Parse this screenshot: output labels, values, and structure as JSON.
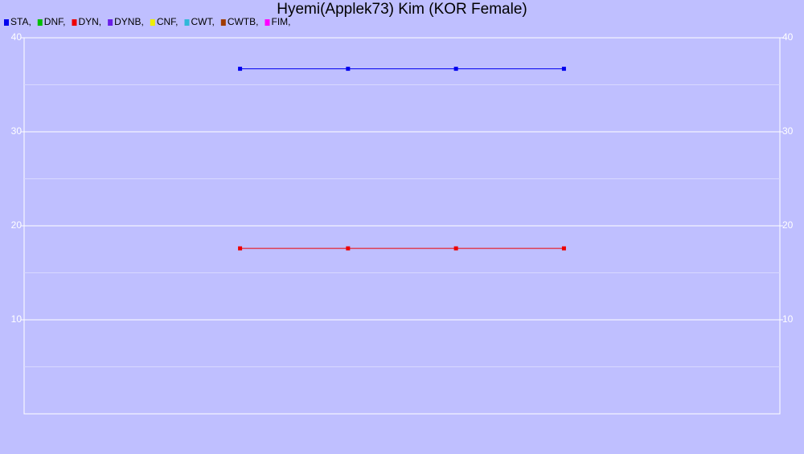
{
  "chart_data": {
    "type": "line",
    "title": "Hyemi(Applek73) Kim (KOR Female)",
    "categories": [
      null,
      null,
      null,
      null,
      null,
      null,
      null,
      null
    ],
    "series": [
      {
        "name": "STA,",
        "color": "#0000ee",
        "values": [
          null,
          null,
          36.7,
          36.7,
          36.7,
          36.7,
          null,
          null
        ]
      },
      {
        "name": "DNF,",
        "color": "#00c000",
        "values": [
          null,
          null,
          null,
          null,
          null,
          null,
          null,
          null
        ]
      },
      {
        "name": "DYN,",
        "color": "#ee0000",
        "values": [
          null,
          null,
          17.6,
          17.6,
          17.6,
          17.6,
          null,
          null
        ]
      },
      {
        "name": "DYNB,",
        "color": "#6a1ee8",
        "values": [
          null,
          null,
          null,
          null,
          null,
          null,
          null,
          null
        ]
      },
      {
        "name": "CNF,",
        "color": "#eeee00",
        "values": [
          null,
          null,
          null,
          null,
          null,
          null,
          null,
          null
        ]
      },
      {
        "name": "CWT,",
        "color": "#30b8d8",
        "values": [
          null,
          null,
          null,
          null,
          null,
          null,
          null,
          null
        ]
      },
      {
        "name": "CWTB,",
        "color": "#a03c00",
        "values": [
          null,
          null,
          null,
          null,
          null,
          null,
          null,
          null
        ]
      },
      {
        "name": "FIM,",
        "color": "#ff00ff",
        "values": [
          null,
          null,
          null,
          null,
          null,
          null,
          null,
          null
        ]
      }
    ],
    "ylim": [
      0,
      40
    ],
    "yticks": [
      10,
      20,
      30,
      40
    ],
    "minor_yticks": [
      5,
      15,
      25,
      35
    ],
    "grid": true
  }
}
